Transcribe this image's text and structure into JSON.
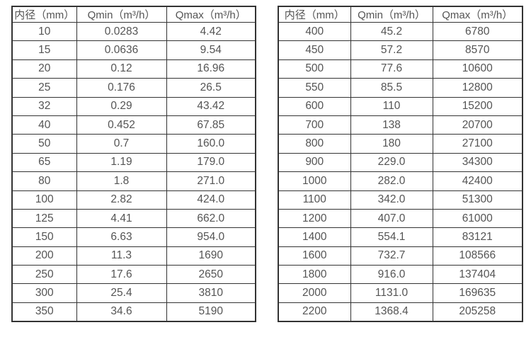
{
  "colors": {
    "border": "#333333",
    "text": "#545454",
    "background": "#ffffff"
  },
  "table_headers": [
    "内径（mm）",
    "Qmin（m³/h）",
    "Qmax（m³/h）"
  ],
  "left_table": {
    "rows": [
      [
        "10",
        "0.0283",
        "4.42"
      ],
      [
        "15",
        "0.0636",
        "9.54"
      ],
      [
        "20",
        "0.12",
        "16.96"
      ],
      [
        "25",
        "0.176",
        "26.5"
      ],
      [
        "32",
        "0.29",
        "43.42"
      ],
      [
        "40",
        "0.452",
        "67.85"
      ],
      [
        "50",
        "0.7",
        "160.0"
      ],
      [
        "65",
        "1.19",
        "179.0"
      ],
      [
        "80",
        "1.8",
        "271.0"
      ],
      [
        "100",
        "2.82",
        "424.0"
      ],
      [
        "125",
        "4.41",
        "662.0"
      ],
      [
        "150",
        "6.63",
        "954.0"
      ],
      [
        "200",
        "11.3",
        "1690"
      ],
      [
        "250",
        "17.6",
        "2650"
      ],
      [
        "300",
        "25.4",
        "3810"
      ],
      [
        "350",
        "34.6",
        "5190"
      ]
    ]
  },
  "right_table": {
    "rows": [
      [
        "400",
        "45.2",
        "6780"
      ],
      [
        "450",
        "57.2",
        "8570"
      ],
      [
        "500",
        "77.6",
        "10600"
      ],
      [
        "550",
        "85.5",
        "12800"
      ],
      [
        "600",
        "110",
        "15200"
      ],
      [
        "700",
        "138",
        "20700"
      ],
      [
        "800",
        "180",
        "27100"
      ],
      [
        "900",
        "229.0",
        "34300"
      ],
      [
        "1000",
        "282.0",
        "42400"
      ],
      [
        "1100",
        "342.0",
        "51300"
      ],
      [
        "1200",
        "407.0",
        "61000"
      ],
      [
        "1400",
        "554.1",
        "83121"
      ],
      [
        "1600",
        "732.7",
        "108566"
      ],
      [
        "1800",
        "916.0",
        "137404"
      ],
      [
        "2000",
        "1131.0",
        "169635"
      ],
      [
        "2200",
        "1368.4",
        "205258"
      ]
    ]
  }
}
